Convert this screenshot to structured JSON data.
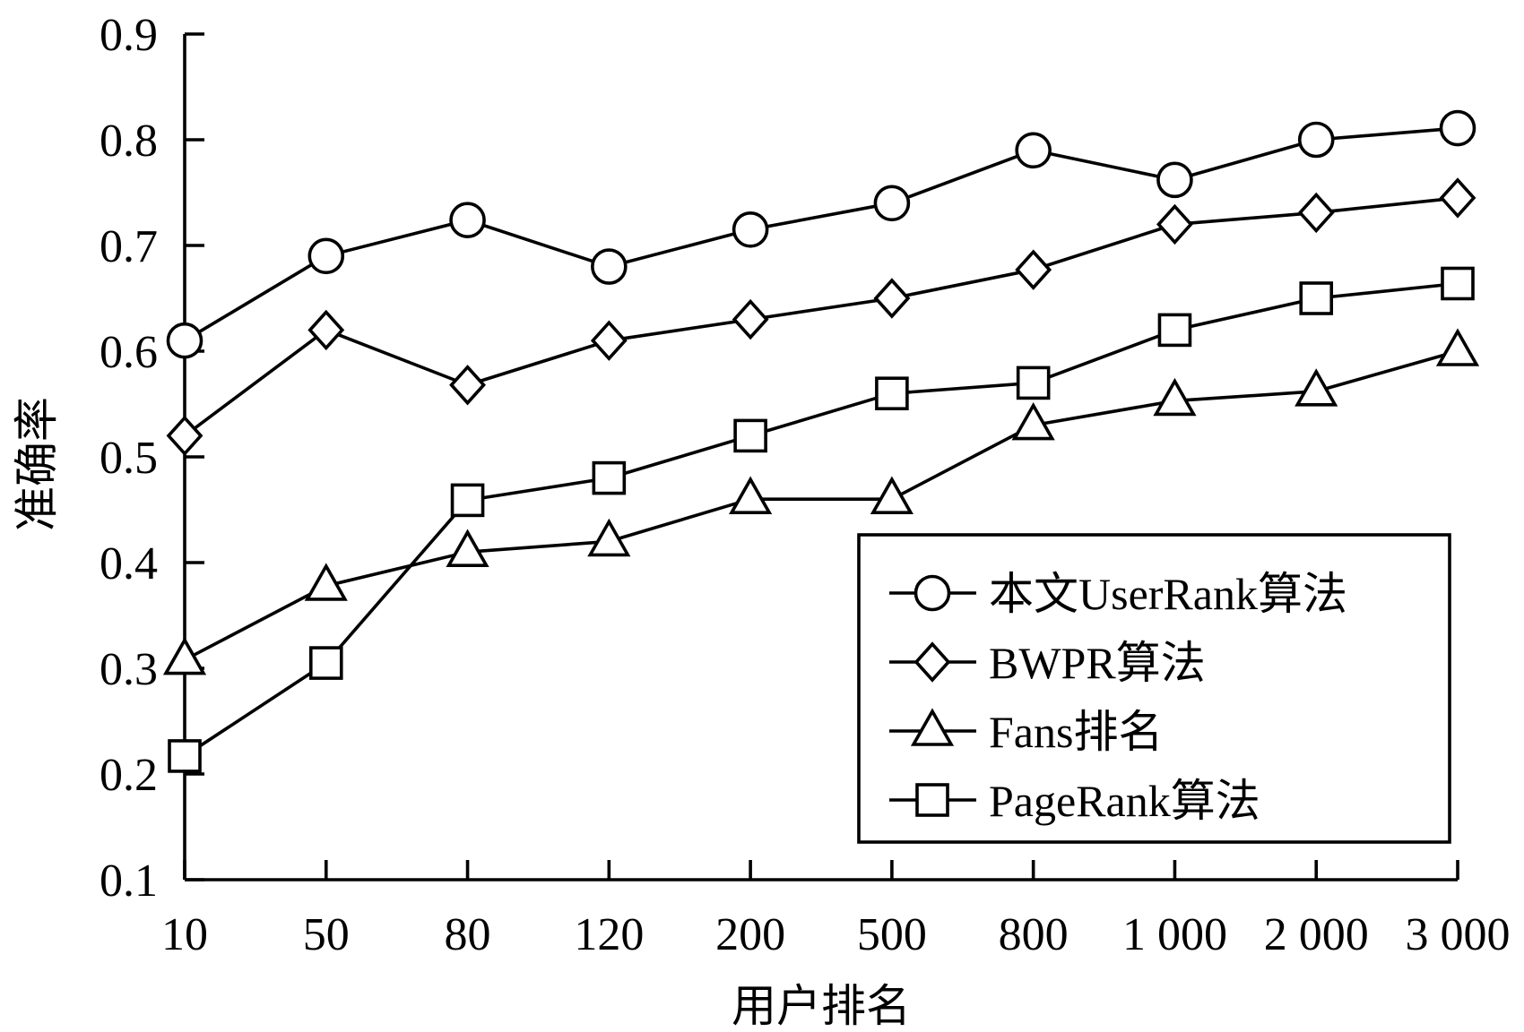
{
  "chart_data": {
    "type": "line",
    "x": [
      "10",
      "50",
      "80",
      "120",
      "200",
      "500",
      "800",
      "1 000",
      "2 000",
      "3 000"
    ],
    "xlabel": "用户排名",
    "ylabel": "准确率",
    "ylim": [
      0.1,
      0.9
    ],
    "yticks": [
      "0.1",
      "0.2",
      "0.3",
      "0.4",
      "0.5",
      "0.6",
      "0.7",
      "0.8",
      "0.9"
    ],
    "grid": false,
    "legend_position": "lower-right",
    "series": [
      {
        "name": "本文UserRank算法",
        "marker": "circle",
        "values": [
          0.61,
          0.69,
          0.724,
          0.68,
          0.715,
          0.74,
          0.79,
          0.762,
          0.8,
          0.811
        ]
      },
      {
        "name": "BWPR算法",
        "marker": "diamond",
        "values": [
          0.52,
          0.62,
          0.568,
          0.61,
          0.63,
          0.65,
          0.677,
          0.72,
          0.731,
          0.745
        ]
      },
      {
        "name": "Fans排名",
        "marker": "triangle",
        "values": [
          0.308,
          0.378,
          0.41,
          0.42,
          0.46,
          0.46,
          0.53,
          0.553,
          0.562,
          0.6
        ]
      },
      {
        "name": "PageRank算法",
        "marker": "square",
        "values": [
          0.217,
          0.305,
          0.459,
          0.48,
          0.52,
          0.56,
          0.57,
          0.62,
          0.65,
          0.664
        ]
      }
    ]
  },
  "colors": {
    "line": "#000000",
    "marker_fill": "#ffffff",
    "background": "#ffffff"
  }
}
